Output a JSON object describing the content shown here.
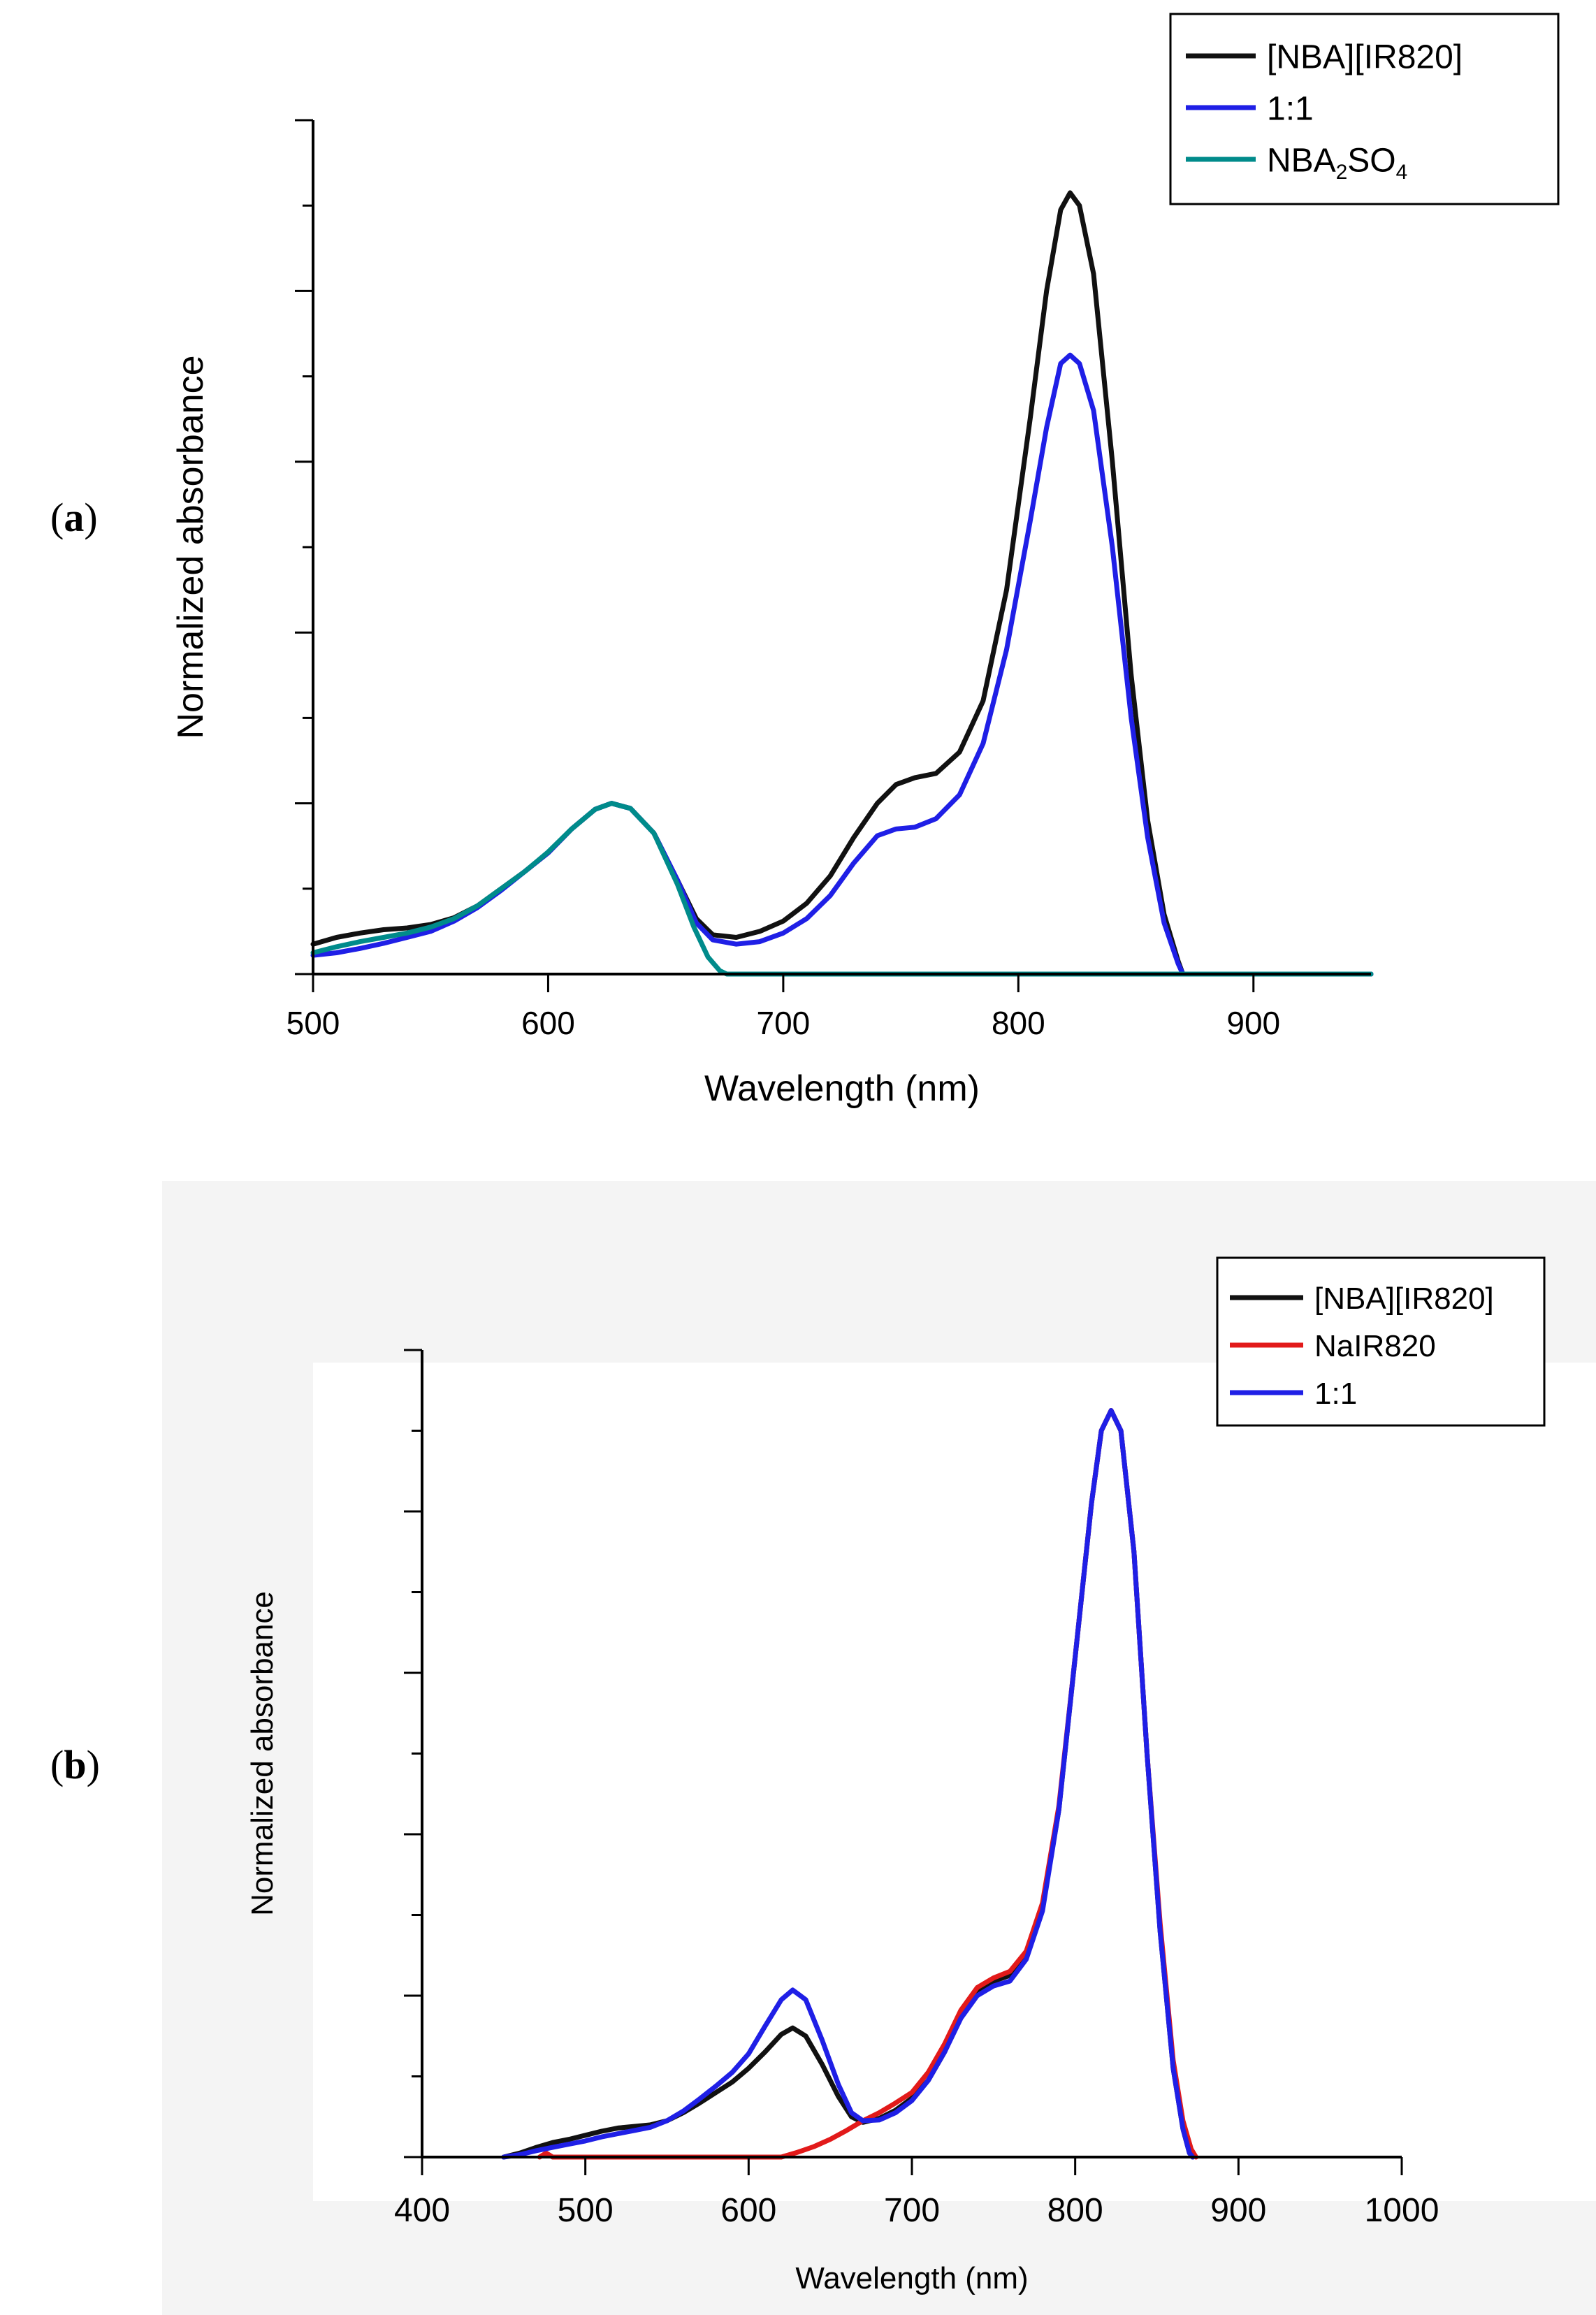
{
  "colors": {
    "black": "#111111",
    "blue": "#1f1fe6",
    "teal": "#008b8b",
    "red": "#e21a1a",
    "panel_b_background": "#f4f4f4"
  },
  "chart_data": [
    {
      "panel_letter": "a",
      "type": "line",
      "title": "",
      "xlabel": "Wavelength (nm)",
      "ylabel": "Normalized absorbance",
      "xlim": [
        500,
        950
      ],
      "ylim": [
        0,
        1.0
      ],
      "x_ticks": [
        500,
        600,
        700,
        800,
        900
      ],
      "x_tick_labels": [
        "500",
        "600",
        "700",
        "800",
        "900"
      ],
      "y_major_ticks": [
        0,
        0.2,
        0.4,
        0.6,
        0.8,
        1.0
      ],
      "y_minor_ticks": [
        0.1,
        0.3,
        0.5,
        0.7,
        0.9
      ],
      "y_tick_labels_shown": false,
      "grid": false,
      "legend_position": "top-right",
      "series": [
        {
          "name": "[NBA][IR820]",
          "color": "#111111",
          "points": [
            [
              500,
              0.035
            ],
            [
              510,
              0.043
            ],
            [
              520,
              0.048
            ],
            [
              530,
              0.052
            ],
            [
              540,
              0.054
            ],
            [
              550,
              0.058
            ],
            [
              560,
              0.066
            ],
            [
              570,
              0.08
            ],
            [
              580,
              0.1
            ],
            [
              590,
              0.12
            ],
            [
              600,
              0.142
            ],
            [
              610,
              0.17
            ],
            [
              620,
              0.193
            ],
            [
              627,
              0.2
            ],
            [
              635,
              0.194
            ],
            [
              645,
              0.165
            ],
            [
              655,
              0.11
            ],
            [
              663,
              0.065
            ],
            [
              670,
              0.046
            ],
            [
              680,
              0.043
            ],
            [
              690,
              0.05
            ],
            [
              700,
              0.062
            ],
            [
              710,
              0.083
            ],
            [
              720,
              0.115
            ],
            [
              730,
              0.16
            ],
            [
              740,
              0.2
            ],
            [
              748,
              0.222
            ],
            [
              756,
              0.23
            ],
            [
              765,
              0.235
            ],
            [
              775,
              0.26
            ],
            [
              785,
              0.32
            ],
            [
              795,
              0.45
            ],
            [
              805,
              0.65
            ],
            [
              812,
              0.8
            ],
            [
              818,
              0.895
            ],
            [
              822,
              0.915
            ],
            [
              826,
              0.9
            ],
            [
              832,
              0.82
            ],
            [
              840,
              0.6
            ],
            [
              848,
              0.35
            ],
            [
              855,
              0.18
            ],
            [
              862,
              0.07
            ],
            [
              868,
              0.015
            ],
            [
              870,
              0.0
            ],
            [
              950,
              0.0
            ]
          ]
        },
        {
          "name": "1:1",
          "color": "#1f1fe6",
          "points": [
            [
              500,
              0.022
            ],
            [
              510,
              0.025
            ],
            [
              520,
              0.03
            ],
            [
              530,
              0.036
            ],
            [
              540,
              0.043
            ],
            [
              550,
              0.05
            ],
            [
              560,
              0.062
            ],
            [
              570,
              0.078
            ],
            [
              580,
              0.098
            ],
            [
              590,
              0.12
            ],
            [
              600,
              0.142
            ],
            [
              610,
              0.17
            ],
            [
              620,
              0.193
            ],
            [
              627,
              0.2
            ],
            [
              635,
              0.194
            ],
            [
              645,
              0.165
            ],
            [
              655,
              0.11
            ],
            [
              663,
              0.06
            ],
            [
              670,
              0.04
            ],
            [
              680,
              0.035
            ],
            [
              690,
              0.038
            ],
            [
              700,
              0.048
            ],
            [
              710,
              0.065
            ],
            [
              720,
              0.092
            ],
            [
              730,
              0.13
            ],
            [
              740,
              0.162
            ],
            [
              748,
              0.17
            ],
            [
              756,
              0.172
            ],
            [
              765,
              0.182
            ],
            [
              775,
              0.21
            ],
            [
              785,
              0.27
            ],
            [
              795,
              0.38
            ],
            [
              805,
              0.53
            ],
            [
              812,
              0.64
            ],
            [
              818,
              0.715
            ],
            [
              822,
              0.725
            ],
            [
              826,
              0.715
            ],
            [
              832,
              0.66
            ],
            [
              840,
              0.5
            ],
            [
              848,
              0.3
            ],
            [
              855,
              0.16
            ],
            [
              862,
              0.06
            ],
            [
              868,
              0.012
            ],
            [
              870,
              0.0
            ],
            [
              950,
              0.0
            ]
          ]
        },
        {
          "name": "NBA2SO4",
          "color": "#008b8b",
          "points": [
            [
              500,
              0.025
            ],
            [
              510,
              0.032
            ],
            [
              520,
              0.038
            ],
            [
              530,
              0.043
            ],
            [
              540,
              0.048
            ],
            [
              550,
              0.055
            ],
            [
              560,
              0.065
            ],
            [
              570,
              0.08
            ],
            [
              580,
              0.1
            ],
            [
              590,
              0.12
            ],
            [
              600,
              0.143
            ],
            [
              610,
              0.17
            ],
            [
              620,
              0.193
            ],
            [
              627,
              0.2
            ],
            [
              635,
              0.194
            ],
            [
              645,
              0.165
            ],
            [
              655,
              0.105
            ],
            [
              662,
              0.055
            ],
            [
              668,
              0.02
            ],
            [
              673,
              0.004
            ],
            [
              676,
              0.0
            ],
            [
              950,
              0.0
            ]
          ]
        }
      ],
      "legend": [
        {
          "label": "[NBA][IR820]",
          "main": "[NBA][IR820]",
          "color": "#111111"
        },
        {
          "label": "1:1",
          "main": "1:1",
          "color": "#1f1fe6"
        },
        {
          "label": "NBA2SO4",
          "part1": "NBA",
          "sub1": "2",
          "part2": "SO",
          "sub2": "4",
          "color": "#008b8b"
        }
      ]
    },
    {
      "panel_letter": "b",
      "type": "line",
      "title": "",
      "xlabel": "Wavelength (nm)",
      "ylabel": "Normalized absorbance",
      "xlim": [
        400,
        1000
      ],
      "ylim": [
        0,
        1.0
      ],
      "x_ticks": [
        400,
        500,
        600,
        700,
        800,
        900,
        1000
      ],
      "x_tick_labels": [
        "400",
        "500",
        "600",
        "700",
        "800",
        "900",
        "1000"
      ],
      "y_major_ticks": [
        0,
        0.2,
        0.4,
        0.6,
        0.8,
        1.0
      ],
      "y_minor_ticks": [
        0.1,
        0.3,
        0.5,
        0.7,
        0.9
      ],
      "y_tick_labels_shown": false,
      "grid": false,
      "legend_position": "top-right",
      "series": [
        {
          "name": "[NBA][IR820]",
          "color": "#111111",
          "points": [
            [
              450,
              0.0
            ],
            [
              460,
              0.005
            ],
            [
              470,
              0.012
            ],
            [
              480,
              0.018
            ],
            [
              490,
              0.022
            ],
            [
              500,
              0.027
            ],
            [
              510,
              0.032
            ],
            [
              520,
              0.036
            ],
            [
              530,
              0.038
            ],
            [
              540,
              0.04
            ],
            [
              550,
              0.045
            ],
            [
              560,
              0.055
            ],
            [
              570,
              0.067
            ],
            [
              580,
              0.08
            ],
            [
              590,
              0.093
            ],
            [
              600,
              0.11
            ],
            [
              610,
              0.13
            ],
            [
              620,
              0.152
            ],
            [
              627,
              0.16
            ],
            [
              635,
              0.15
            ],
            [
              645,
              0.115
            ],
            [
              655,
              0.075
            ],
            [
              663,
              0.05
            ],
            [
              670,
              0.043
            ],
            [
              680,
              0.048
            ],
            [
              690,
              0.058
            ],
            [
              700,
              0.073
            ],
            [
              710,
              0.095
            ],
            [
              720,
              0.13
            ],
            [
              730,
              0.175
            ],
            [
              740,
              0.205
            ],
            [
              750,
              0.218
            ],
            [
              760,
              0.225
            ],
            [
              770,
              0.25
            ],
            [
              780,
              0.31
            ],
            [
              790,
              0.43
            ],
            [
              800,
              0.62
            ],
            [
              810,
              0.81
            ],
            [
              816,
              0.9
            ],
            [
              822,
              0.925
            ],
            [
              828,
              0.9
            ],
            [
              836,
              0.75
            ],
            [
              844,
              0.5
            ],
            [
              852,
              0.28
            ],
            [
              860,
              0.11
            ],
            [
              866,
              0.035
            ],
            [
              870,
              0.005
            ],
            [
              872,
              0.0
            ]
          ]
        },
        {
          "name": "NaIR820",
          "color": "#e21a1a",
          "points": [
            [
              472,
              0.0
            ],
            [
              476,
              0.005
            ],
            [
              480,
              0.0
            ],
            [
              620,
              0.0
            ],
            [
              630,
              0.006
            ],
            [
              640,
              0.013
            ],
            [
              650,
              0.022
            ],
            [
              660,
              0.033
            ],
            [
              670,
              0.045
            ],
            [
              680,
              0.055
            ],
            [
              690,
              0.067
            ],
            [
              700,
              0.08
            ],
            [
              710,
              0.105
            ],
            [
              720,
              0.14
            ],
            [
              730,
              0.182
            ],
            [
              740,
              0.21
            ],
            [
              750,
              0.222
            ],
            [
              760,
              0.23
            ],
            [
              770,
              0.255
            ],
            [
              780,
              0.315
            ],
            [
              790,
              0.435
            ],
            [
              800,
              0.62
            ],
            [
              810,
              0.81
            ],
            [
              816,
              0.9
            ],
            [
              822,
              0.925
            ],
            [
              828,
              0.9
            ],
            [
              836,
              0.75
            ],
            [
              844,
              0.5
            ],
            [
              852,
              0.29
            ],
            [
              860,
              0.12
            ],
            [
              866,
              0.045
            ],
            [
              871,
              0.01
            ],
            [
              874,
              0.0
            ]
          ]
        },
        {
          "name": "1:1",
          "color": "#1f1fe6",
          "points": [
            [
              450,
              0.0
            ],
            [
              460,
              0.003
            ],
            [
              470,
              0.008
            ],
            [
              480,
              0.012
            ],
            [
              490,
              0.016
            ],
            [
              500,
              0.02
            ],
            [
              510,
              0.025
            ],
            [
              520,
              0.029
            ],
            [
              530,
              0.033
            ],
            [
              540,
              0.037
            ],
            [
              550,
              0.045
            ],
            [
              560,
              0.057
            ],
            [
              570,
              0.072
            ],
            [
              580,
              0.088
            ],
            [
              590,
              0.105
            ],
            [
              600,
              0.128
            ],
            [
              610,
              0.162
            ],
            [
              620,
              0.195
            ],
            [
              627,
              0.207
            ],
            [
              635,
              0.195
            ],
            [
              645,
              0.145
            ],
            [
              655,
              0.09
            ],
            [
              663,
              0.055
            ],
            [
              670,
              0.045
            ],
            [
              680,
              0.046
            ],
            [
              690,
              0.055
            ],
            [
              700,
              0.07
            ],
            [
              710,
              0.095
            ],
            [
              720,
              0.13
            ],
            [
              730,
              0.172
            ],
            [
              740,
              0.2
            ],
            [
              750,
              0.212
            ],
            [
              760,
              0.218
            ],
            [
              770,
              0.245
            ],
            [
              780,
              0.305
            ],
            [
              790,
              0.43
            ],
            [
              800,
              0.62
            ],
            [
              810,
              0.81
            ],
            [
              816,
              0.9
            ],
            [
              822,
              0.925
            ],
            [
              828,
              0.9
            ],
            [
              836,
              0.75
            ],
            [
              844,
              0.5
            ],
            [
              852,
              0.28
            ],
            [
              860,
              0.11
            ],
            [
              866,
              0.035
            ],
            [
              870,
              0.005
            ],
            [
              872,
              0.0
            ]
          ]
        }
      ],
      "legend": [
        {
          "label": "[NBA][IR820]",
          "main": "[NBA][IR820]",
          "color": "#111111"
        },
        {
          "label": "NaIR820",
          "main": "NaIR820",
          "color": "#e21a1a"
        },
        {
          "label": "1:1",
          "main": "1:1",
          "color": "#1f1fe6"
        }
      ]
    }
  ]
}
